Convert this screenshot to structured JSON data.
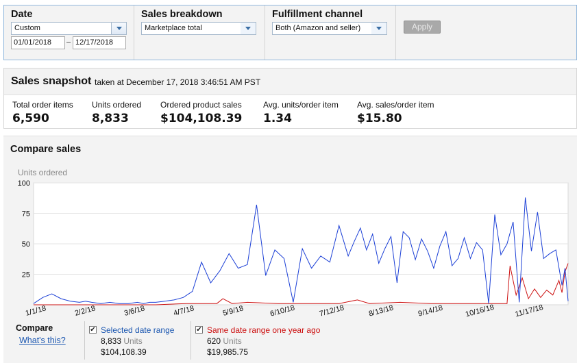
{
  "filters": {
    "date": {
      "label": "Date",
      "selected": "Custom",
      "from": "01/01/2018",
      "to": "12/17/2018",
      "separator": "–"
    },
    "sales_breakdown": {
      "label": "Sales breakdown",
      "selected": "Marketplace total"
    },
    "fulfillment": {
      "label": "Fulfillment channel",
      "selected": "Both (Amazon and seller)"
    },
    "apply_label": "Apply"
  },
  "snapshot": {
    "title": "Sales snapshot",
    "subtitle": "taken at December 17, 2018 3:46:51 AM PST",
    "metrics": [
      {
        "label": "Total order items",
        "value": "6,590"
      },
      {
        "label": "Units ordered",
        "value": "8,833"
      },
      {
        "label": "Ordered product sales",
        "value": "$104,108.39"
      },
      {
        "label": "Avg. units/order item",
        "value": "1.34"
      },
      {
        "label": "Avg. sales/order item",
        "value": "$15.80"
      }
    ]
  },
  "compare": {
    "title": "Compare sales",
    "label": "Compare",
    "whats_this": "What's this?",
    "legend": [
      {
        "label": "Selected date range",
        "units": "8,833",
        "units_label": "Units",
        "sales": "$104,108.39",
        "color": "#1b3fd6",
        "checked": true
      },
      {
        "label": "Same date range one year ago",
        "units": "620",
        "units_label": "Units",
        "sales": "$19,985.75",
        "color": "#cc1010",
        "checked": true
      }
    ]
  },
  "colors": {
    "selected_series": "#1b3fd6",
    "year_ago_series": "#cc1010",
    "accent": "#1a56b0"
  },
  "chart_data": {
    "type": "line",
    "title": "",
    "xlabel": "",
    "ylabel": "Units ordered",
    "ylim": [
      0,
      100
    ],
    "yticks": [
      100,
      75,
      50,
      25
    ],
    "grid": "horizontal",
    "x_range": [
      "1/1/18",
      "12/17/18"
    ],
    "x_tick_labels": [
      "1/1/18",
      "2/2/18",
      "3/6/18",
      "4/7/18",
      "5/9/18",
      "6/10/18",
      "7/12/18",
      "8/13/18",
      "9/14/18",
      "10/16/18",
      "11/17/18"
    ],
    "series": [
      {
        "name": "Selected date range",
        "color": "#1b3fd6",
        "days": [
          0,
          6,
          12,
          18,
          24,
          30,
          34,
          38,
          44,
          50,
          56,
          62,
          68,
          72,
          76,
          80,
          86,
          92,
          98,
          104,
          110,
          116,
          122,
          128,
          134,
          140,
          146,
          152,
          158,
          164,
          170,
          176,
          182,
          188,
          194,
          200,
          206,
          210,
          214,
          218,
          222,
          226,
          230,
          234,
          238,
          242,
          246,
          250,
          254,
          258,
          262,
          266,
          270,
          274,
          278,
          282,
          286,
          290,
          294,
          298,
          302,
          306,
          310,
          314,
          318,
          322,
          326,
          330,
          334,
          338,
          342,
          346,
          348,
          350
        ],
        "values": [
          1,
          6,
          9,
          5,
          3,
          2,
          3,
          2,
          1,
          2,
          1,
          1,
          2,
          1,
          2,
          2,
          3,
          4,
          6,
          11,
          35,
          18,
          28,
          42,
          30,
          33,
          82,
          24,
          45,
          38,
          2,
          46,
          30,
          40,
          35,
          65,
          40,
          52,
          63,
          45,
          58,
          34,
          46,
          56,
          18,
          60,
          55,
          37,
          54,
          44,
          30,
          48,
          60,
          32,
          38,
          55,
          38,
          51,
          45,
          1,
          74,
          41,
          50,
          68,
          2,
          88,
          44,
          76,
          38,
          42,
          45,
          16,
          30,
          3
        ]
      },
      {
        "name": "Same date range one year ago",
        "color": "#cc1010",
        "days": [
          0,
          40,
          80,
          100,
          120,
          124,
          130,
          140,
          160,
          180,
          200,
          212,
          220,
          240,
          260,
          280,
          300,
          310,
          312,
          316,
          320,
          324,
          328,
          332,
          336,
          340,
          344,
          346,
          348,
          350
        ],
        "values": [
          0,
          0,
          0,
          1,
          1,
          5,
          1,
          2,
          1,
          1,
          1,
          4,
          1,
          2,
          1,
          1,
          1,
          1,
          32,
          8,
          22,
          5,
          13,
          6,
          12,
          8,
          20,
          10,
          27,
          34
        ]
      }
    ]
  }
}
